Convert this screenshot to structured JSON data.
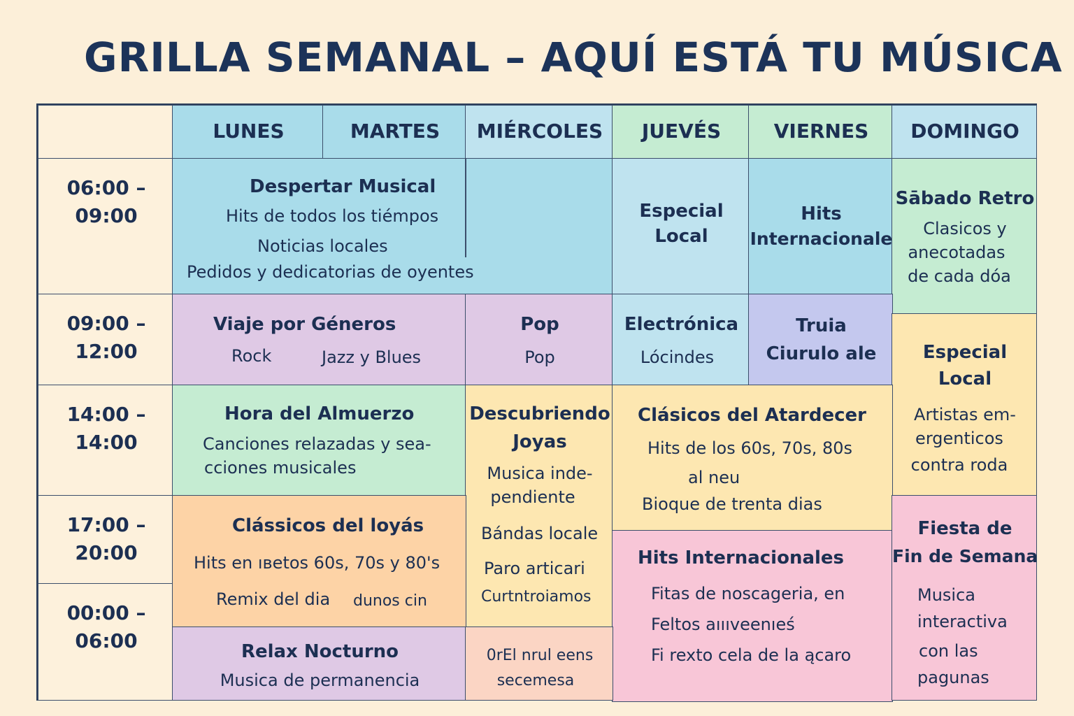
{
  "title": "GRILLA SEMANAL – AQUÍ ESTÁ TU MÚSICA",
  "days": [
    "LUNES",
    "MARTES",
    "MIÉRCOLES",
    "JUEVÉS",
    "VIERNES",
    "DOMINGO"
  ],
  "times": [
    {
      "start": "06:00 –",
      "end": "09:00"
    },
    {
      "start": "09:00 –",
      "end": "12:00"
    },
    {
      "start": "14:00 –",
      "end": "14:00"
    },
    {
      "start": "17:00 –",
      "end": "20:00"
    },
    {
      "start": "00:00 –",
      "end": "06:00"
    }
  ],
  "programs": {
    "despertar": {
      "title": "Despertar Musical",
      "lines": [
        "Hits de todos los tiémpos",
        "Noticias locales",
        "Pedidos y dedicatorias de oyentes"
      ]
    },
    "especial_local_jue": {
      "title_1": "Especial",
      "title_2": "Local"
    },
    "hits_internacionales_vie": {
      "title_1": "Hits",
      "title_2": "Internacionale"
    },
    "sabado_retro": {
      "title": "Sābado Retro",
      "lines": [
        "Clasicos y",
        "anecotadas",
        "de cada dóa"
      ]
    },
    "viaje": {
      "title": "Viaje por Géneros",
      "lines": [
        "Rock",
        "Jazz y Blues"
      ]
    },
    "pop": {
      "title": "Pop",
      "lines": [
        "Pop"
      ]
    },
    "electronica": {
      "title": "Electrónica",
      "lines": [
        "Lócindes"
      ]
    },
    "truia": {
      "title_1": "Truia",
      "title_2": "Ciurulo ale"
    },
    "especial_local_dom": {
      "title_1": "Especial",
      "title_2": "Local",
      "lines": [
        "Artistas em-",
        "ergenticos",
        "contra roda"
      ]
    },
    "almuerzo": {
      "title": "Hora del Almuerzo",
      "lines": [
        "Canciones relazadas y sea-",
        "cciones musicales"
      ]
    },
    "descubriendo": {
      "title_1": "Descubriendo",
      "title_2": "Joyas",
      "lines": [
        "Musica inde-",
        "pendiente",
        "Bándas locale",
        "Paro articari",
        "Curtntroiamos"
      ]
    },
    "atardecer": {
      "title": "Clásicos del Atardecer",
      "lines": [
        "Hits de los 60s, 70s, 80s",
        "al neu",
        "Bioque de trenta dias"
      ]
    },
    "loyas": {
      "title": "Clássicos del loyás",
      "lines": [
        "Hits en ıвetos 60s, 70s y 80's",
        "Remix del dia",
        "dunos cin"
      ]
    },
    "hits_internacionales": {
      "title": "Hits Internacionales",
      "lines": [
        "Fitas de noscageria, en",
        "Feltos aıııveenıeś",
        "Fi rexto cela de la ącaro"
      ]
    },
    "fiesta": {
      "title_1": "Fiesta de",
      "title_2": "Fin de Semana",
      "lines": [
        "Musica",
        "interactiva",
        "con las",
        "pagunas"
      ]
    },
    "relax": {
      "title": "Relax Nocturno",
      "lines": [
        "Musica de permanencia"
      ]
    },
    "orel": {
      "lines": [
        "0rEl nrul eens",
        "secemesa"
      ]
    }
  },
  "colors": {
    "background": "#fcefd9",
    "blue": "#a9dcea",
    "light_blue": "#bfe3ef",
    "green": "#c5ecd2",
    "purple": "#dfc9e5",
    "lavender": "#c4c8ee",
    "yellow": "#fde7b1",
    "orange": "#fdd3a6",
    "pink": "#f8c6d7",
    "peach": "#fbd5c4",
    "cream": "#fdf1dc",
    "text": "#1c2f52"
  }
}
